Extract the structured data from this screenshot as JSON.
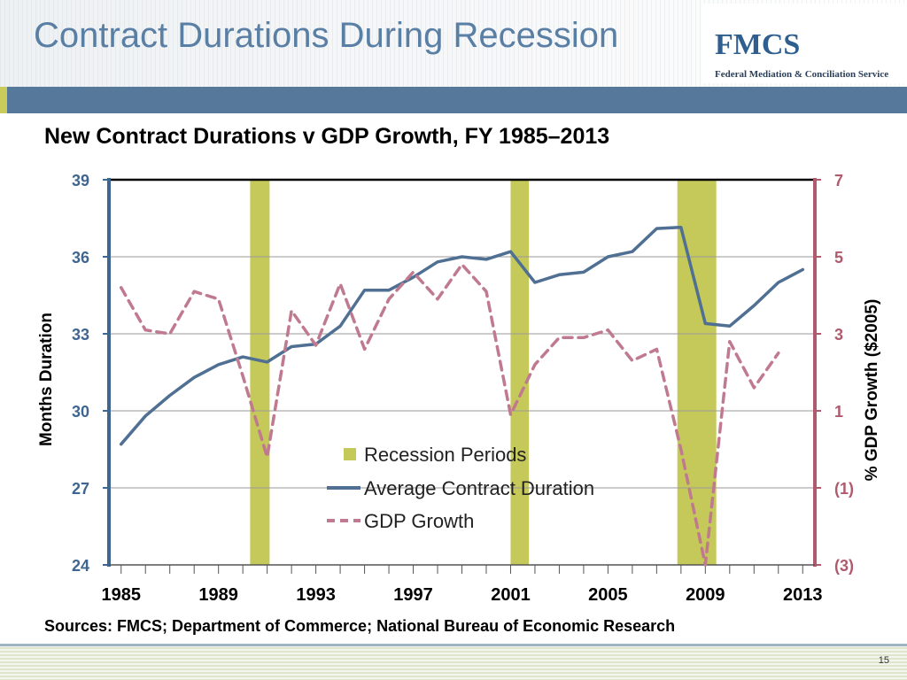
{
  "slide": {
    "title": "Contract Durations During Recession",
    "page_number": "15"
  },
  "logo": {
    "mark": "FMCS",
    "subtitle": "Federal Mediation & Conciliation Service"
  },
  "colors": {
    "title_blue": "#5a7fa5",
    "band_blue": "#56789a",
    "recession": "#c5c95a",
    "duration_line": "#4f6f93",
    "gdp_line": "#c07a90",
    "left_axis": "#3f6690",
    "right_axis": "#b05a6e"
  },
  "chart_data": {
    "type": "line",
    "title": "New Contract Durations v GDP Growth, FY 1985–2013",
    "ylabel": "Months Duration",
    "y2label": "% GDP Growth ($2005)",
    "ylim": [
      24,
      39
    ],
    "y2lim": [
      -3,
      7
    ],
    "xlim": [
      1984.5,
      2013.5
    ],
    "yticks": [
      "24",
      "27",
      "30",
      "33",
      "36",
      "39"
    ],
    "y2ticks": [
      "(3)",
      "(1)",
      "1",
      "3",
      "5",
      "7"
    ],
    "xticks": [
      "1985",
      "1989",
      "1993",
      "1997",
      "2001",
      "2005",
      "2009",
      "2013"
    ],
    "grid": "horizontal",
    "legend_placement": "center",
    "legend": [
      "Recession Periods",
      "Average Contract Duration",
      "GDP Growth"
    ],
    "recessions": [
      {
        "start": 1990.3,
        "end": 1991.1
      },
      {
        "start": 2001.0,
        "end": 2001.75
      },
      {
        "start": 2007.85,
        "end": 2009.45
      }
    ],
    "series": [
      {
        "name": "Average Contract Duration",
        "axis": "left",
        "style": "solid",
        "x": [
          1985,
          1986,
          1987,
          1988,
          1989,
          1990,
          1991,
          1992,
          1993,
          1994,
          1995,
          1996,
          1997,
          1998,
          1999,
          2000,
          2001,
          2002,
          2003,
          2004,
          2005,
          2006,
          2007,
          2008,
          2009,
          2010,
          2011,
          2012,
          2013
        ],
        "values": [
          28.7,
          29.8,
          30.6,
          31.3,
          31.8,
          32.1,
          31.9,
          32.5,
          32.6,
          33.3,
          34.7,
          34.7,
          35.2,
          35.8,
          36.0,
          35.9,
          36.2,
          35.0,
          35.3,
          35.4,
          36.0,
          36.2,
          37.1,
          37.15,
          33.4,
          33.3,
          34.1,
          35.0,
          35.5
        ]
      },
      {
        "name": "GDP Growth",
        "axis": "right",
        "style": "dashed",
        "x": [
          1985,
          1986,
          1987,
          1988,
          1989,
          1990,
          1991,
          1992,
          1993,
          1994,
          1995,
          1996,
          1997,
          1998,
          1999,
          2000,
          2001,
          2002,
          2003,
          2004,
          2005,
          2006,
          2007,
          2008,
          2009,
          2010,
          2011,
          2012
        ],
        "values": [
          4.2,
          3.1,
          3.0,
          4.1,
          3.9,
          1.9,
          -0.2,
          3.6,
          2.7,
          4.3,
          2.6,
          3.9,
          4.6,
          3.9,
          4.8,
          4.1,
          0.9,
          2.2,
          2.9,
          2.9,
          3.1,
          2.3,
          2.6,
          0.0,
          -3.0,
          2.8,
          1.6,
          2.5
        ]
      }
    ]
  },
  "source": "Sources: FMCS; Department of Commerce; National Bureau of Economic Research"
}
